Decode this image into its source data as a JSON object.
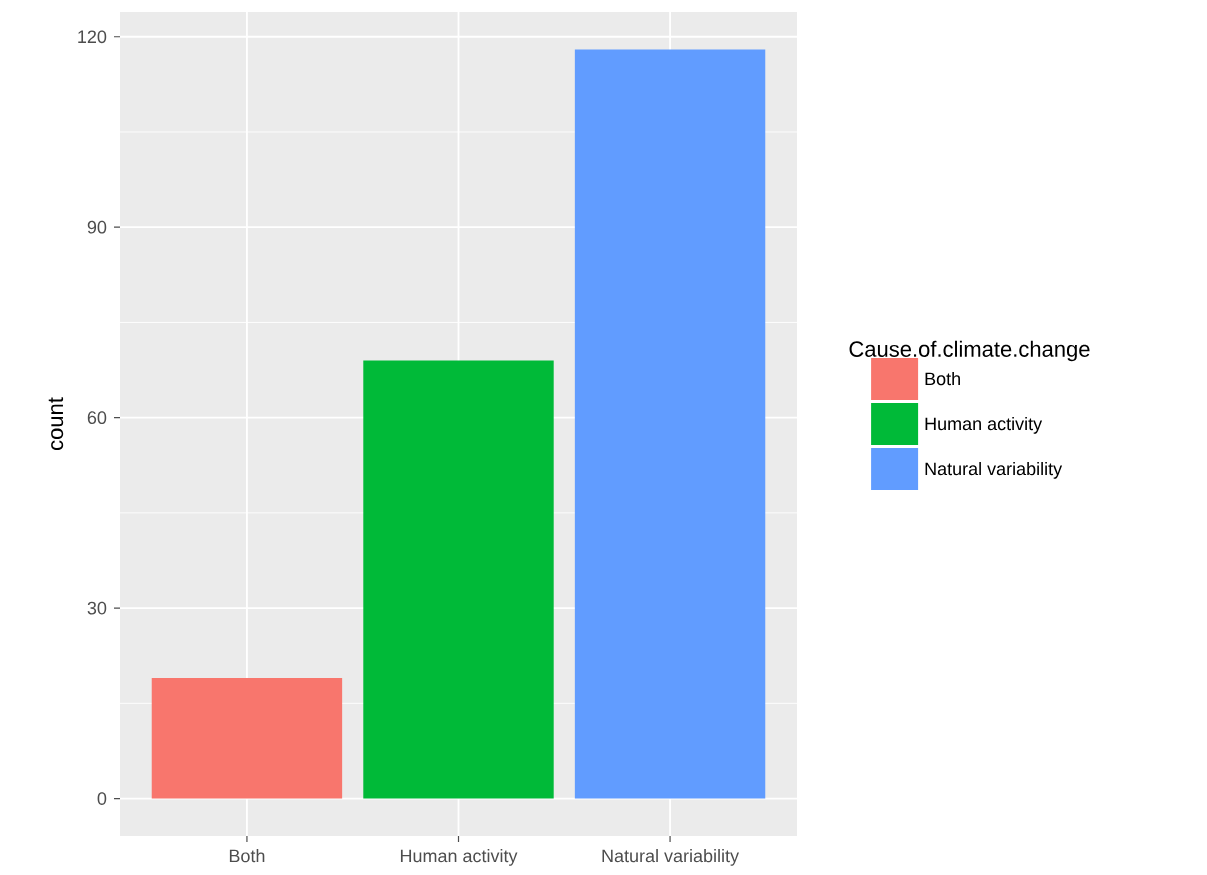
{
  "chart_data": {
    "type": "bar",
    "ylabel": "count",
    "legend_title": "Cause.of.climate.change",
    "legend": "right",
    "grid": true,
    "categories": [
      "Both",
      "Human activity",
      "Natural variability"
    ],
    "series": [
      {
        "name": "Both",
        "color": "#f8766d",
        "values": [
          19,
          null,
          null
        ]
      },
      {
        "name": "Human activity",
        "color": "#00ba38",
        "values": [
          null,
          69,
          null
        ]
      },
      {
        "name": "Natural variability",
        "color": "#619cff",
        "values": [
          null,
          null,
          118
        ]
      }
    ],
    "ylim": [
      -5.9,
      123.9
    ],
    "yticks": [
      0,
      30,
      60,
      90,
      120
    ]
  }
}
